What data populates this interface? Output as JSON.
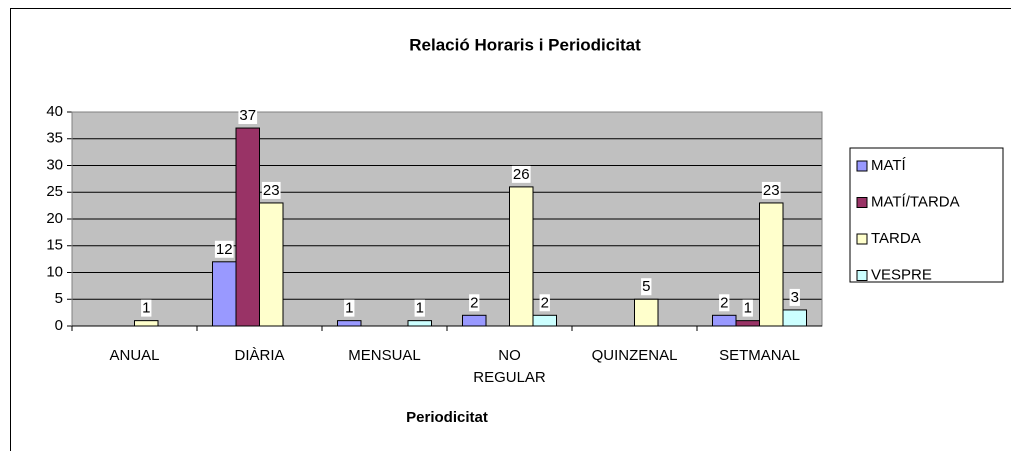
{
  "chart_data": {
    "type": "bar",
    "title": "Relació Horaris i Periodicitat",
    "x_label": "Periodicitat",
    "categories": [
      "ANUAL",
      "DIÀRIA",
      "MENSUAL",
      "NO REGULAR",
      "QUINZENAL",
      "SETMANAL"
    ],
    "series": [
      {
        "name": "MATÍ",
        "color": "#9999ff",
        "values": [
          null,
          12,
          1,
          2,
          null,
          2
        ]
      },
      {
        "name": "MATÍ/TARDA",
        "color": "#993366",
        "values": [
          null,
          37,
          null,
          null,
          null,
          1
        ]
      },
      {
        "name": "TARDA",
        "color": "#ffffcc",
        "values": [
          1,
          23,
          null,
          26,
          5,
          23
        ]
      },
      {
        "name": "VESPRE",
        "color": "#ccffff",
        "values": [
          null,
          null,
          1,
          2,
          null,
          3
        ]
      }
    ],
    "ylim": [
      0,
      40
    ],
    "yticks": [
      0,
      5,
      10,
      15,
      20,
      25,
      30,
      35,
      40
    ],
    "grid": true,
    "legend": "right"
  }
}
